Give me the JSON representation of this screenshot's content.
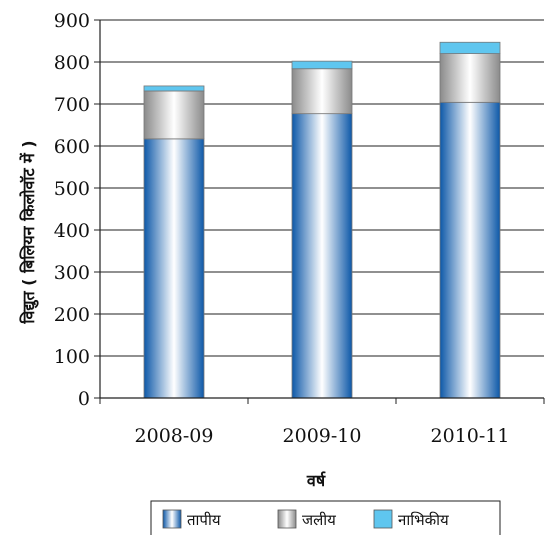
{
  "chart_data": {
    "type": "bar",
    "stacked": true,
    "categories": [
      "2008-09",
      "2009-10",
      "2010-11"
    ],
    "series": [
      {
        "name": "तापीय",
        "values": [
          617,
          677,
          704
        ],
        "color": "#2a86d6"
      },
      {
        "name": "जलीय",
        "values": [
          114,
          107,
          116
        ],
        "color": "#e6e6e6"
      },
      {
        "name": "नाभिकीय",
        "values": [
          12,
          18,
          27
        ],
        "color": "#5fc6ef"
      }
    ],
    "yticks": [
      "0",
      "100",
      "200",
      "300",
      "400",
      "500",
      "600",
      "700",
      "800",
      "900"
    ],
    "ylim": [
      0,
      900
    ],
    "xlabel": "वर्ष",
    "ylabel": "विद्युत ( बिलियन किलोवॉट में )",
    "grid": true,
    "legend_position": "bottom"
  }
}
